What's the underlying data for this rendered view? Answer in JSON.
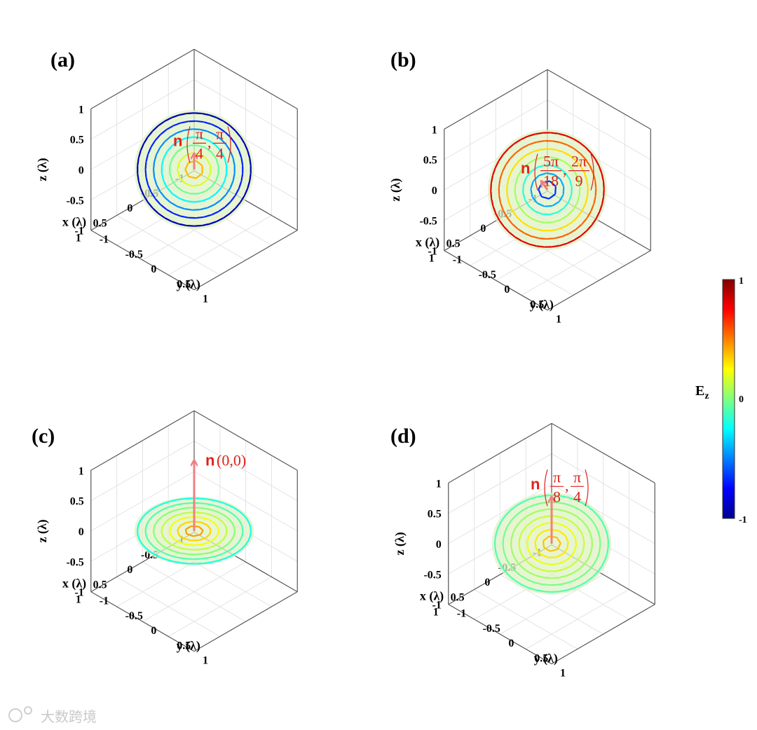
{
  "chart_data": [
    {
      "type": "3d-vector-field",
      "panel": "(a)",
      "xlabel": "x (λ)",
      "ylabel": "y (λ)",
      "zlabel": "z (λ)",
      "xlim": [
        -1,
        1
      ],
      "ylim": [
        -1,
        1
      ],
      "zlim": [
        -1,
        1
      ],
      "xticks": [
        "-1",
        "-0.5",
        "0",
        "0.5",
        "1"
      ],
      "yticks": [
        "-1",
        "-0.5",
        "0",
        "0.5",
        "1"
      ],
      "zticks": [
        "-1",
        "-0.5",
        "0",
        "0.5",
        "1"
      ],
      "normal": {
        "theta_deg": 45,
        "phi_deg": 45
      },
      "normal_label": {
        "prefix": "n",
        "num1": "π",
        "den1": "4",
        "num2": "π",
        "den2": "4"
      },
      "ez_center": 0.6,
      "ez_edge": -0.9,
      "grid": true
    },
    {
      "type": "3d-vector-field",
      "panel": "(b)",
      "xlabel": "x (λ)",
      "ylabel": "y (λ)",
      "zlabel": "z (λ)",
      "xlim": [
        -1,
        1
      ],
      "ylim": [
        -1,
        1
      ],
      "zlim": [
        -1,
        1
      ],
      "xticks": [
        "-1",
        "-0.5",
        "0",
        "0.5",
        "1"
      ],
      "yticks": [
        "-1",
        "-0.5",
        "0",
        "0.5",
        "1"
      ],
      "zticks": [
        "-1",
        "-0.5",
        "0",
        "0.5",
        "1"
      ],
      "normal": {
        "theta_deg": 50,
        "phi_deg": 40
      },
      "normal_label": {
        "prefix": "n",
        "num1": "5π",
        "den1": "18",
        "num2": "2π",
        "den2": "9"
      },
      "ez_center": -0.9,
      "ez_edge": 0.8,
      "grid": true
    },
    {
      "type": "3d-vector-field",
      "panel": "(c)",
      "xlabel": "x (λ)",
      "ylabel": "y (λ)",
      "zlabel": "z (λ)",
      "xlim": [
        -1,
        1
      ],
      "ylim": [
        -1,
        1
      ],
      "zlim": [
        -1,
        1
      ],
      "xticks": [
        "-1",
        "-0.5",
        "0",
        "0.5",
        "1"
      ],
      "yticks": [
        "-1",
        "-0.5",
        "0",
        "0.5",
        "1"
      ],
      "zticks": [
        "-1",
        "-0.5",
        "0",
        "0.5",
        "1"
      ],
      "normal": {
        "theta_deg": 0,
        "phi_deg": 0
      },
      "normal_label": {
        "prefix": "n",
        "text": "(0,0)"
      },
      "ez_center": 0.55,
      "ez_edge": -0.2,
      "grid": true
    },
    {
      "type": "3d-vector-field",
      "panel": "(d)",
      "xlabel": "x (λ)",
      "ylabel": "y (λ)",
      "zlabel": "z (λ)",
      "xlim": [
        -1,
        1
      ],
      "ylim": [
        -1,
        1
      ],
      "zlim": [
        -1,
        1
      ],
      "xticks": [
        "-1",
        "-0.5",
        "0",
        "0.5",
        "1"
      ],
      "yticks": [
        "-1",
        "-0.5",
        "0",
        "0.5",
        "1"
      ],
      "zticks": [
        "-1",
        "-0.5",
        "0",
        "0.5",
        "1"
      ],
      "normal": {
        "theta_deg": 22.5,
        "phi_deg": 45
      },
      "normal_label": {
        "prefix": "n",
        "num1": "π",
        "den1": "8",
        "num2": "π",
        "den2": "4"
      },
      "ez_center": 0.45,
      "ez_edge": -0.1,
      "grid": true
    }
  ],
  "colorbar": {
    "label": "E",
    "label_sub": "z",
    "ticks": [
      "1",
      "0",
      "-1"
    ],
    "range": [
      -1,
      1
    ],
    "colormap": "jet"
  },
  "colors": {
    "arrow": "#f08080",
    "label": "#e0201b",
    "disk": "#dff2c4",
    "axis": "#4a4a4a",
    "grid": "#e3e3e3"
  },
  "watermark": "大数跨境"
}
